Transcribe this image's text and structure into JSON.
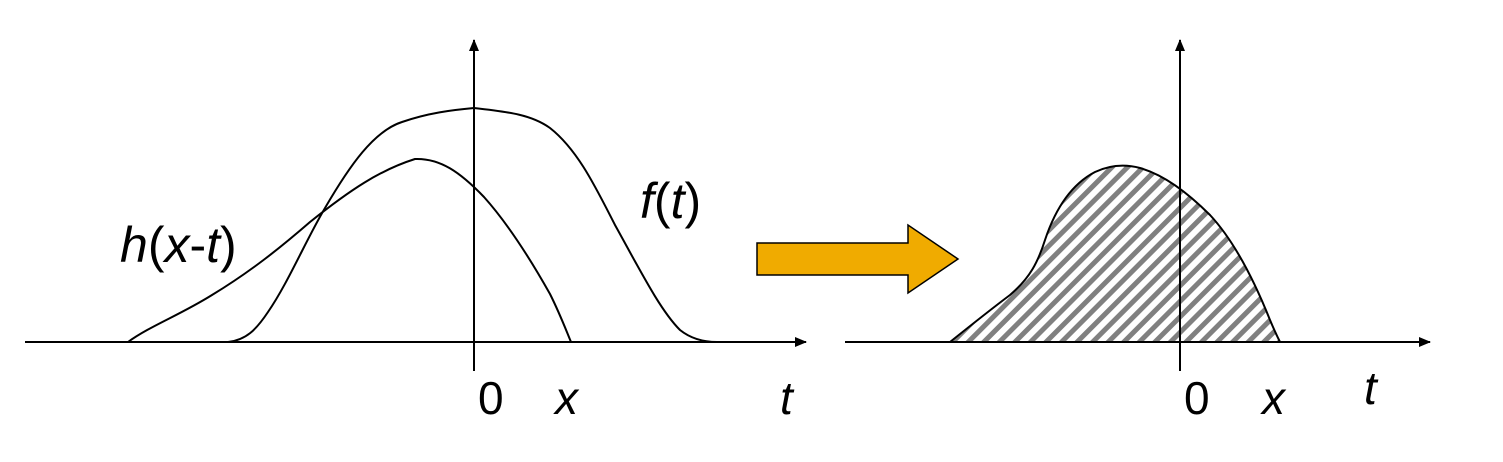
{
  "left_panel": {
    "labels": {
      "h_prefix": "h",
      "h_open": "(",
      "h_x": "x",
      "h_dash": "-",
      "h_t": "t",
      "h_close": ")",
      "f_name": "f",
      "f_open": "(",
      "f_t": "t",
      "f_close": ")",
      "origin": "0",
      "x_tick": "x",
      "axis": "t"
    }
  },
  "right_panel": {
    "labels": {
      "origin": "0",
      "x_tick": "x",
      "axis": "t"
    }
  },
  "colors": {
    "arrow_fill": "#f0ab00",
    "arrow_stroke": "#000000",
    "hatch": "#808080",
    "line": "#000000"
  }
}
